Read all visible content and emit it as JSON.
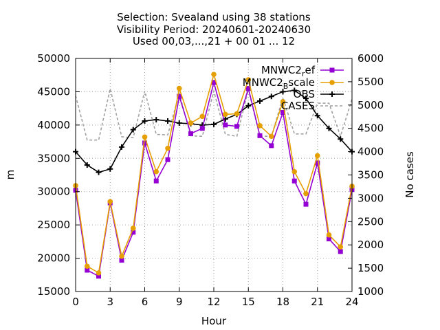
{
  "chart_data": {
    "type": "line",
    "title": [
      "Selection: Svealand using    38 stations",
      "Visibility   Period: 20240601-20240630",
      "Used 00,03,...,21 + 00 01 ... 12"
    ],
    "xlabel": "Hour",
    "ylabel": "m",
    "y2label": "No cases",
    "xlim": [
      0,
      24
    ],
    "ylim": [
      15000,
      50000
    ],
    "y2lim": [
      1000,
      6000
    ],
    "xticks": [
      "0",
      "3",
      "6",
      "9",
      "12",
      "15",
      "18",
      "21",
      "24"
    ],
    "yticks": [
      "15000",
      "20000",
      "25000",
      "30000",
      "35000",
      "40000",
      "45000",
      "50000"
    ],
    "y2ticks": [
      "1000",
      "1500",
      "2000",
      "2500",
      "3000",
      "3500",
      "4000",
      "4500",
      "5000",
      "5500",
      "6000"
    ],
    "grid": true,
    "legend_position": "top-right",
    "x": [
      0,
      1,
      2,
      3,
      4,
      5,
      6,
      7,
      8,
      9,
      10,
      11,
      12,
      13,
      14,
      15,
      16,
      17,
      18,
      19,
      20,
      21,
      22,
      23,
      24
    ],
    "series": [
      {
        "name": "MNWC2_ref",
        "name_main": "MNWC2",
        "name_sub": "r",
        "name_rest": "ef",
        "color": "#9400d3",
        "marker": "square",
        "axis": "y",
        "values": [
          30200,
          18200,
          17300,
          28300,
          19700,
          23900,
          37300,
          31600,
          34800,
          44300,
          38700,
          39500,
          46400,
          40000,
          39800,
          45500,
          38400,
          36900,
          41900,
          31600,
          28100,
          34300,
          22900,
          21000,
          30300
        ]
      },
      {
        "name": "MNWC2_Bscale",
        "name_main": "MNWC2",
        "name_sub": "B",
        "name_rest": "scale",
        "color": "#e69f00",
        "marker": "circle",
        "axis": "y",
        "values": [
          30900,
          18800,
          17800,
          28500,
          20300,
          24500,
          38200,
          33000,
          36500,
          45500,
          40300,
          41300,
          47600,
          41600,
          41700,
          46800,
          39900,
          38300,
          43500,
          33000,
          29700,
          35400,
          23500,
          21700,
          30800
        ]
      },
      {
        "name": "OBS",
        "color": "#000000",
        "marker": "plus",
        "axis": "y",
        "values": [
          36000,
          34000,
          32900,
          33400,
          36700,
          39300,
          40600,
          40800,
          40600,
          40300,
          40200,
          40000,
          40100,
          40900,
          41600,
          42900,
          43600,
          44300,
          45000,
          45200,
          44000,
          41400,
          39500,
          37900,
          36000
        ]
      },
      {
        "name": "CASES",
        "color": "#a0a0a0",
        "dash": true,
        "axis": "y2",
        "values": [
          5200,
          4250,
          4250,
          5350,
          4320,
          4300,
          5300,
          4370,
          4360,
          5250,
          4340,
          4330,
          5300,
          4370,
          4330,
          5330,
          4330,
          4330,
          5160,
          4380,
          4380,
          5040,
          5040,
          4330,
          5130
        ]
      }
    ]
  }
}
